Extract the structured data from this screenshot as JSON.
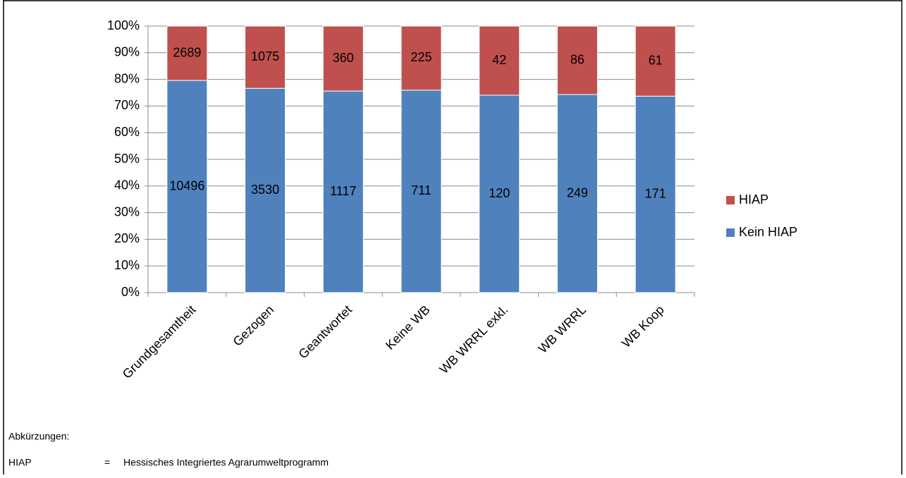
{
  "chart_data": {
    "type": "bar",
    "stacking": "percent",
    "categories": [
      "Grundgesamtheit",
      "Gezogen",
      "Geantwortet",
      "Keine WB",
      "WB WRRL exkl.",
      "WB WRRL",
      "WB Koop"
    ],
    "series": [
      {
        "name": "Kein HIAP",
        "color": "#4f81bd",
        "values": [
          10496,
          3530,
          1117,
          711,
          120,
          249,
          171
        ]
      },
      {
        "name": "HIAP",
        "color": "#c0504d",
        "values": [
          2689,
          1075,
          360,
          225,
          42,
          86,
          61
        ]
      }
    ],
    "ylim": [
      0,
      100
    ],
    "yticks": [
      {
        "value": 0,
        "label": "0%"
      },
      {
        "value": 10,
        "label": "10%"
      },
      {
        "value": 20,
        "label": "20%"
      },
      {
        "value": 30,
        "label": "30%"
      },
      {
        "value": 40,
        "label": "40%"
      },
      {
        "value": 50,
        "label": "50%"
      },
      {
        "value": 60,
        "label": "60%"
      },
      {
        "value": 70,
        "label": "70%"
      },
      {
        "value": 80,
        "label": "80%"
      },
      {
        "value": 90,
        "label": "90%"
      },
      {
        "value": 100,
        "label": "100%"
      }
    ],
    "grid": true,
    "legend": "right"
  },
  "footer": {
    "heading": "Abkürzungen:",
    "abbreviations": [
      {
        "term": "HIAP",
        "sep": "=",
        "definition": "Hessisches Integriertes Agrarumweltprogramm"
      }
    ]
  }
}
